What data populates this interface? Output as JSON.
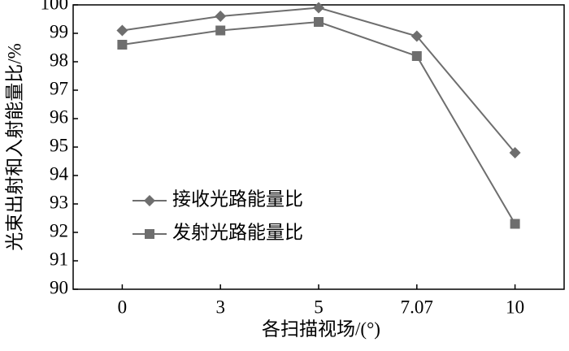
{
  "chart_data": {
    "type": "line",
    "x_label": "各扫描视场/(°)",
    "y_label": "光束出射和入射能量比/%",
    "categories": [
      "0",
      "3",
      "5",
      "7.07",
      "10"
    ],
    "series": [
      {
        "name": "接收光路能量比",
        "color": "#6e6e6e",
        "marker": "diamond",
        "values": [
          99.1,
          99.6,
          99.9,
          98.9,
          94.8
        ]
      },
      {
        "name": "发射光路能量比",
        "color": "#6e6e6e",
        "marker": "square",
        "values": [
          98.6,
          99.1,
          99.4,
          98.2,
          92.3
        ]
      }
    ],
    "ylim": [
      90,
      100
    ],
    "yticks": [
      90,
      91,
      92,
      93,
      94,
      95,
      96,
      97,
      98,
      99,
      100
    ],
    "legend": "center left",
    "grid": false
  }
}
